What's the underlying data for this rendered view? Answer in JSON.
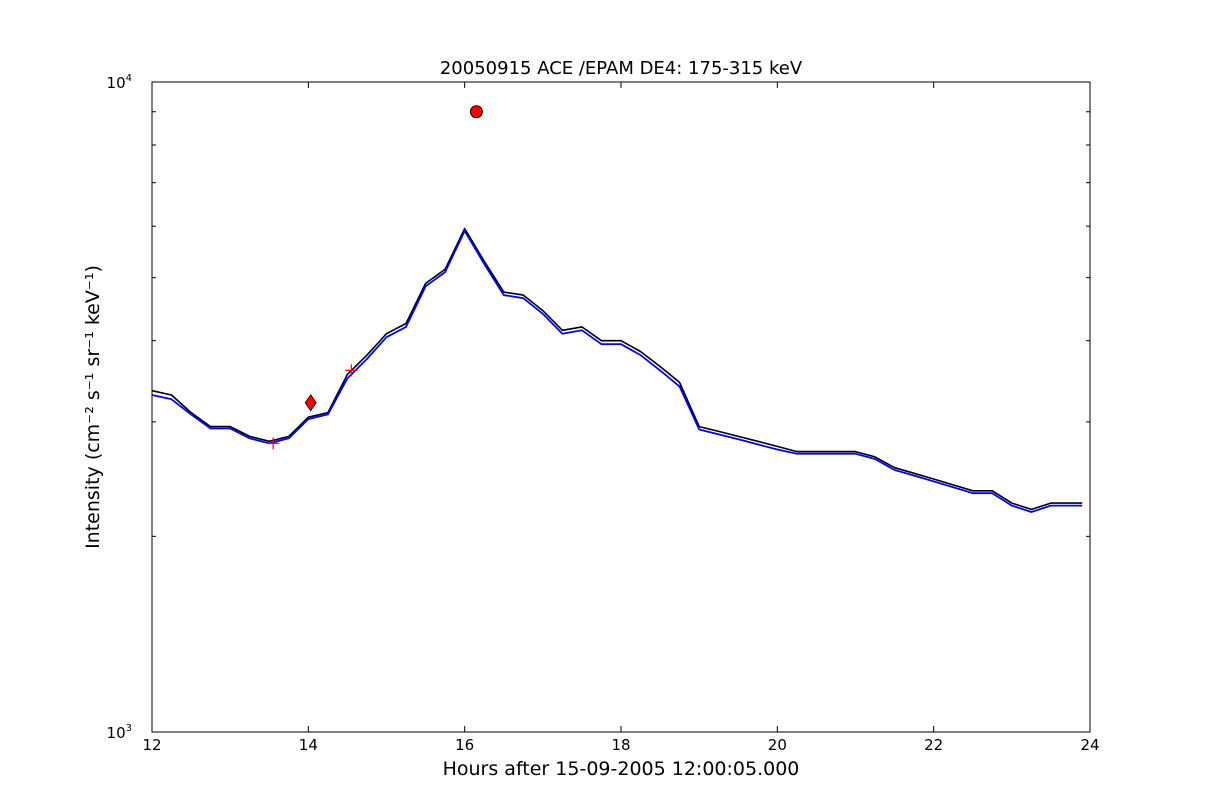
{
  "chart_data": {
    "type": "line",
    "title": "20050915 ACE /EPAM DE4: 175-315 keV",
    "xlabel": "Hours after 15-09-2005 12:00:05.000",
    "ylabel": "Intensity (cm⁻² s⁻¹ sr⁻¹ keV⁻¹)",
    "xlim": [
      12,
      24
    ],
    "ylim": [
      1000,
      10000
    ],
    "yscale": "log",
    "grid": false,
    "x_ticks": [
      "12",
      "14",
      "16",
      "18",
      "20",
      "22",
      "24"
    ],
    "y_ticks": [
      {
        "base": "10",
        "exp": "3"
      },
      {
        "base": "10",
        "exp": "4"
      }
    ],
    "series": [
      {
        "style": "raw",
        "color": "#000000",
        "x": [
          12.0,
          12.25,
          12.5,
          12.75,
          13.0,
          13.25,
          13.5,
          13.75,
          14.0,
          14.25,
          14.5,
          14.75,
          15.0,
          15.25,
          15.5,
          15.75,
          16.0,
          16.25,
          16.5,
          16.75,
          17.0,
          17.25,
          17.5,
          17.75,
          18.0,
          18.25,
          18.5,
          18.75,
          19.0,
          19.25,
          19.5,
          19.75,
          20.0,
          20.25,
          20.5,
          20.75,
          21.0,
          21.25,
          21.5,
          21.75,
          22.0,
          22.25,
          22.5,
          22.75,
          23.0,
          23.25,
          23.5,
          23.75,
          23.9
        ],
        "y": [
          3350,
          3300,
          3100,
          2950,
          2950,
          2850,
          2800,
          2850,
          3050,
          3100,
          3550,
          3800,
          4100,
          4250,
          4900,
          5150,
          5950,
          5300,
          4750,
          4700,
          4450,
          4150,
          4200,
          4000,
          4000,
          3850,
          3650,
          3450,
          2950,
          2900,
          2850,
          2800,
          2750,
          2700,
          2700,
          2700,
          2700,
          2650,
          2550,
          2500,
          2450,
          2400,
          2350,
          2350,
          2250,
          2200,
          2250,
          2250,
          2250
        ]
      },
      {
        "style": "smoothed",
        "color": "#0000ff",
        "x": [
          12.0,
          12.25,
          12.5,
          12.75,
          13.0,
          13.25,
          13.5,
          13.75,
          14.0,
          14.25,
          14.5,
          14.75,
          15.0,
          15.25,
          15.5,
          15.75,
          16.0,
          16.25,
          16.5,
          16.75,
          17.0,
          17.25,
          17.5,
          17.75,
          18.0,
          18.25,
          18.5,
          18.75,
          19.0,
          19.25,
          19.5,
          19.75,
          20.0,
          20.25,
          20.5,
          20.75,
          21.0,
          21.25,
          21.5,
          21.75,
          22.0,
          22.25,
          22.5,
          22.75,
          23.0,
          23.25,
          23.5,
          23.75,
          23.9
        ],
        "y": [
          3300,
          3250,
          3080,
          2930,
          2930,
          2830,
          2780,
          2830,
          3030,
          3080,
          3500,
          3750,
          4050,
          4200,
          4850,
          5100,
          5900,
          5250,
          4700,
          4650,
          4400,
          4100,
          4150,
          3950,
          3950,
          3800,
          3600,
          3400,
          2920,
          2870,
          2820,
          2770,
          2720,
          2680,
          2680,
          2680,
          2680,
          2630,
          2530,
          2480,
          2430,
          2380,
          2330,
          2330,
          2230,
          2180,
          2230,
          2230,
          2230
        ]
      }
    ],
    "markers": [
      {
        "shape": "circle",
        "color": "#ff0000",
        "x": 16.15,
        "y": 9000
      },
      {
        "shape": "diamond",
        "color": "#ff0000",
        "x": 14.03,
        "y": 3210
      },
      {
        "shape": "plus",
        "color": "#ff0000",
        "x": 14.55,
        "y": 3600
      },
      {
        "shape": "plus",
        "color": "#ff0000",
        "x": 13.55,
        "y": 2780
      }
    ]
  }
}
